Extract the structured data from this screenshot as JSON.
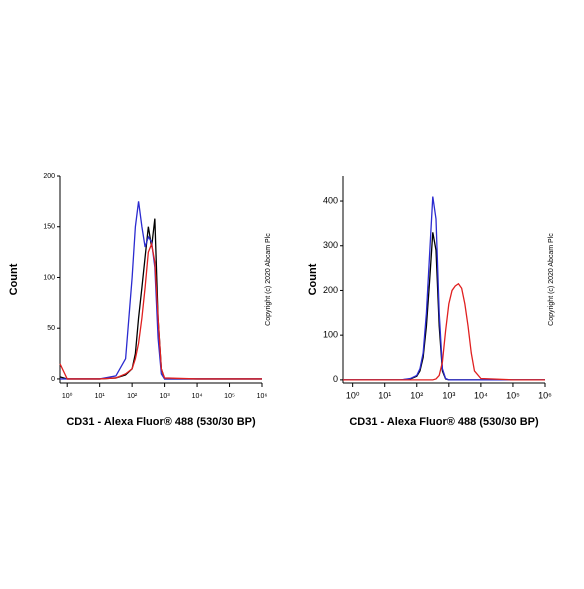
{
  "chart_data": [
    {
      "type": "line",
      "xscale": "log",
      "xlabel": "CD31 - Alexa Fluor® 488 (530/30 BP)",
      "ylabel": "Count",
      "annotation": "Copyright (c) 2020 Abcam Plc",
      "x": [
        0.6,
        1,
        10,
        31.6,
        63,
        100,
        126,
        158,
        200,
        251,
        316,
        398,
        501,
        631,
        794,
        1000,
        10000,
        1000000
      ],
      "series": [
        {
          "color": "#000000",
          "values": [
            2,
            0,
            0,
            1,
            4,
            10,
            25,
            60,
            90,
            120,
            150,
            130,
            158,
            60,
            10,
            0,
            0,
            0
          ]
        },
        {
          "color": "#2b2bd0",
          "values": [
            0,
            0,
            0,
            3,
            20,
            100,
            150,
            175,
            150,
            130,
            140,
            135,
            110,
            40,
            5,
            0,
            0,
            0
          ]
        },
        {
          "color": "#e02020",
          "values": [
            15,
            0,
            0,
            1,
            5,
            10,
            20,
            35,
            60,
            90,
            125,
            133,
            115,
            60,
            10,
            1,
            0,
            0
          ]
        }
      ],
      "xlim": [
        0.6,
        1000000
      ],
      "ylim": [
        -4,
        200
      ],
      "xticks": [
        {
          "value": 1,
          "label": "10⁰"
        },
        {
          "value": 10,
          "label": "10¹"
        },
        {
          "value": 100,
          "label": "10²"
        },
        {
          "value": 1000,
          "label": "10³"
        },
        {
          "value": 10000,
          "label": "10⁴"
        },
        {
          "value": 100000,
          "label": "10⁵"
        },
        {
          "value": 1000000,
          "label": "10⁶"
        }
      ],
      "yticks": [
        0,
        50,
        100,
        150,
        200
      ]
    },
    {
      "type": "line",
      "xscale": "log",
      "xlabel": "CD31 - Alexa Fluor® 488 (530/30 BP)",
      "ylabel": "Count",
      "annotation": "Copyright (c) 2020 Abcam Plc",
      "x": [
        0.5,
        1,
        10,
        31.6,
        63,
        100,
        126,
        158,
        200,
        251,
        316,
        398,
        501,
        631,
        794,
        1000,
        1259,
        1585,
        1995,
        2512,
        3162,
        3981,
        5012,
        6310,
        10000,
        100000,
        1000000
      ],
      "series": [
        {
          "color": "#000000",
          "values": [
            0,
            0,
            0,
            0,
            2,
            8,
            20,
            50,
            120,
            220,
            330,
            290,
            120,
            20,
            2,
            0,
            0,
            0,
            0,
            0,
            0,
            0,
            0,
            0,
            0,
            0,
            0
          ]
        },
        {
          "color": "#2b2bd0",
          "values": [
            0,
            0,
            0,
            0,
            3,
            10,
            25,
            60,
            150,
            280,
            410,
            360,
            150,
            25,
            3,
            0,
            0,
            0,
            0,
            0,
            0,
            0,
            0,
            0,
            0,
            0,
            0
          ]
        },
        {
          "color": "#e02020",
          "values": [
            0,
            0,
            0,
            0,
            0,
            0,
            0,
            0,
            0,
            0,
            0,
            2,
            10,
            40,
            110,
            170,
            200,
            210,
            215,
            205,
            170,
            120,
            60,
            20,
            3,
            0,
            0
          ]
        }
      ],
      "xlim": [
        0.5,
        1000000
      ],
      "ylim": [
        -7,
        456
      ],
      "xticks": [
        {
          "value": 1,
          "label": "10⁰"
        },
        {
          "value": 10,
          "label": "10¹"
        },
        {
          "value": 100,
          "label": "10²"
        },
        {
          "value": 1000,
          "label": "10³"
        },
        {
          "value": 10000,
          "label": "10⁴"
        },
        {
          "value": 100000,
          "label": "10⁵"
        },
        {
          "value": 1000000,
          "label": "10⁶"
        }
      ],
      "yticks": [
        0,
        100,
        200,
        300,
        400
      ]
    }
  ]
}
